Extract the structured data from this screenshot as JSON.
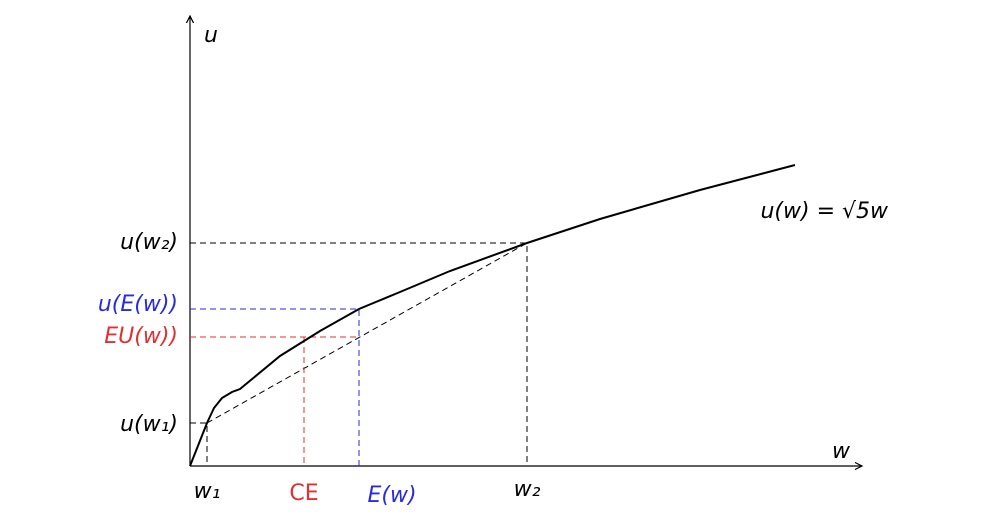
{
  "axes": {
    "x_label": "w",
    "y_label": "u"
  },
  "curve_label": "u(w) = √5w",
  "x_labels": {
    "w1": "w₁",
    "ce": "CE",
    "ew": "E(w)",
    "w2": "w₂"
  },
  "y_labels": {
    "uw2": "u(w₂)",
    "uew": "u(E(w))",
    "euw": "EU(w))",
    "uw1": "u(w₁)"
  }
}
